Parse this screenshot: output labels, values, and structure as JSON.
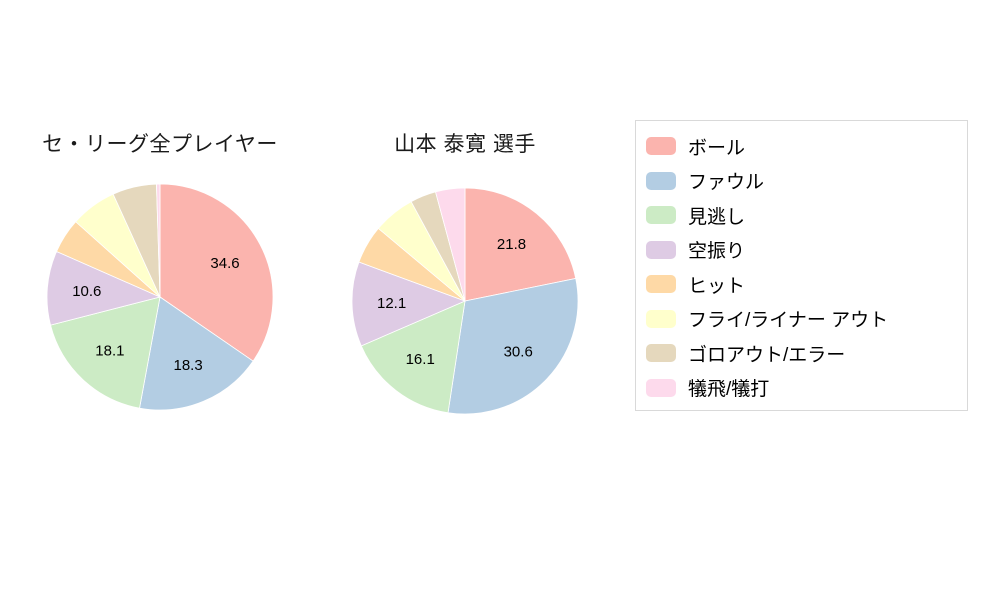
{
  "chart_data": [
    {
      "type": "pie",
      "title": "セ・リーグ全プレイヤー",
      "categories": [
        "ボール",
        "ファウル",
        "見逃し",
        "空振り",
        "ヒット",
        "フライ/ライナー アウト",
        "ゴロアウト/エラー",
        "犠飛/犠打"
      ],
      "values": [
        34.6,
        18.3,
        18.1,
        10.6,
        5.0,
        6.6,
        6.3,
        0.5
      ],
      "labels": [
        "34.6",
        "18.3",
        "18.1",
        "10.6",
        "",
        "",
        "",
        ""
      ],
      "start_angle": "top",
      "direction": "clockwise"
    },
    {
      "type": "pie",
      "title": "山本 泰寛  選手",
      "categories": [
        "ボール",
        "ファウル",
        "見逃し",
        "空振り",
        "ヒット",
        "フライ/ライナー アウト",
        "ゴロアウト/エラー",
        "犠飛/犠打"
      ],
      "values": [
        21.8,
        30.6,
        16.1,
        12.1,
        5.5,
        6.0,
        3.7,
        4.2
      ],
      "labels": [
        "21.8",
        "30.6",
        "16.1",
        "12.1",
        "",
        "",
        "",
        ""
      ],
      "start_angle": "top",
      "direction": "clockwise"
    }
  ],
  "legend": {
    "position": "right",
    "entries": [
      {
        "label": "ボール",
        "color": "#fbb4ae"
      },
      {
        "label": "ファウル",
        "color": "#b3cde3"
      },
      {
        "label": "見逃し",
        "color": "#ccebc5"
      },
      {
        "label": "空振り",
        "color": "#decbe4"
      },
      {
        "label": "ヒット",
        "color": "#fed9a6"
      },
      {
        "label": "フライ/ライナー アウト",
        "color": "#ffffcc"
      },
      {
        "label": "ゴロアウト/エラー",
        "color": "#e5d8bd"
      },
      {
        "label": "犠飛/犠打",
        "color": "#fddaec"
      }
    ]
  }
}
